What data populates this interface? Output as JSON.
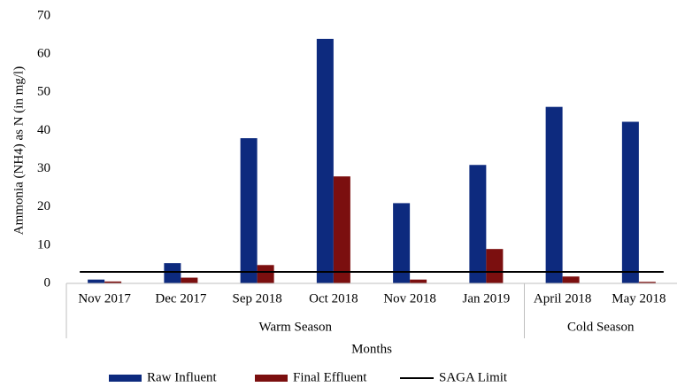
{
  "chart_data": {
    "type": "bar",
    "y_label": "Ammonia (NH4) as N (in mg/l)",
    "x_label": "Months",
    "categories": [
      "Nov 2017",
      "Dec 2017",
      "Sep 2018",
      "Oct 2018",
      "Nov 2018",
      "Jan 2019",
      "April 2018",
      "May 2018"
    ],
    "category_groups": [
      {
        "name": "Warm Season",
        "count": 6
      },
      {
        "name": "Cold Season",
        "count": 2
      }
    ],
    "series": [
      {
        "name": "Raw Influent",
        "color": "#0d2a7e",
        "values": [
          1,
          5.3,
          38,
          64,
          21,
          31,
          46.2,
          42.3
        ]
      },
      {
        "name": "Final Effluent",
        "color": "#7b0f0f",
        "values": [
          0.5,
          1.5,
          4.8,
          28,
          1,
          9,
          1.8,
          0.4
        ]
      }
    ],
    "reference_line": {
      "name": "SAGA Limit",
      "value": 3,
      "color": "#000000"
    },
    "ylim": [
      0,
      70
    ],
    "yticks": [
      0,
      10,
      20,
      30,
      40,
      50,
      60,
      70
    ],
    "grid": false,
    "legend": "bottom"
  }
}
